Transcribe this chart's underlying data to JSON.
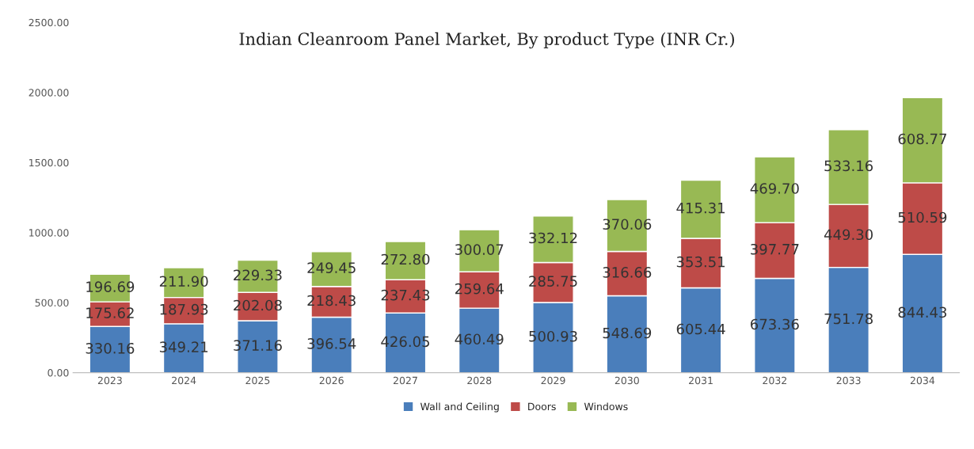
{
  "chart_data": {
    "type": "bar",
    "title": "Indian Cleanroom Panel Market, By product Type (INR Cr.)",
    "categories": [
      "2023",
      "2024",
      "2025",
      "2026",
      "2027",
      "2028",
      "2029",
      "2030",
      "2031",
      "2032",
      "2033",
      "2034"
    ],
    "stacked": true,
    "series": [
      {
        "name": "Wall and Ceiling",
        "color": "#4a7ebb",
        "values": [
          330.16,
          349.21,
          371.16,
          396.54,
          426.05,
          460.49,
          500.93,
          548.69,
          605.44,
          673.36,
          751.78,
          844.43
        ],
        "value_labels": [
          "330.16",
          "349.21",
          "371.16",
          "396.54",
          "426.05",
          "460.49",
          "500.93",
          "548.69",
          "605.44",
          "673.36",
          "751.78",
          "844.43"
        ]
      },
      {
        "name": "Doors",
        "color": "#be4b48",
        "values": [
          175.62,
          187.93,
          202.08,
          218.43,
          237.43,
          259.64,
          285.75,
          316.66,
          353.51,
          397.77,
          449.3,
          510.59
        ],
        "value_labels": [
          "175.62",
          "187.93",
          "202.08",
          "218.43",
          "237.43",
          "259.64",
          "285.75",
          "316.66",
          "353.51",
          "397.77",
          "449.30",
          "510.59"
        ]
      },
      {
        "name": "Windows",
        "color": "#98b954",
        "values": [
          196.69,
          211.9,
          229.33,
          249.45,
          272.8,
          300.07,
          332.12,
          370.06,
          415.31,
          469.7,
          533.16,
          608.77
        ],
        "value_labels": [
          "196.69",
          "211.90",
          "229.33",
          "249.45",
          "272.80",
          "300.07",
          "332.12",
          "370.06",
          "415.31",
          "469.70",
          "533.16",
          "608.77"
        ]
      }
    ],
    "ylim": [
      0,
      2500
    ],
    "yticks": [
      {
        "value": 0,
        "label": "0.00"
      },
      {
        "value": 500,
        "label": "500.00"
      },
      {
        "value": 1000,
        "label": "1000.00"
      },
      {
        "value": 1500,
        "label": "1500.00"
      },
      {
        "value": 2000,
        "label": "2000.00"
      },
      {
        "value": 2500,
        "label": "2500.00"
      }
    ],
    "grid": false,
    "legend": "bottom"
  }
}
